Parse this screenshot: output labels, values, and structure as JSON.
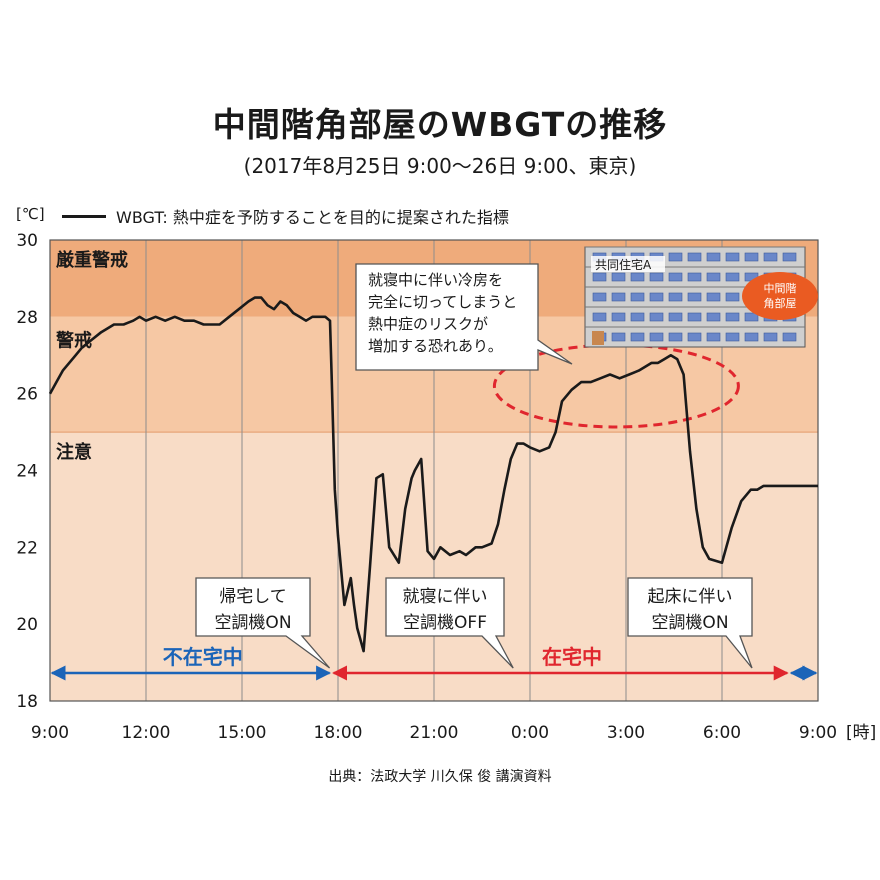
{
  "title": "中間階角部屋のWBGTの推移",
  "subtitle": "(2017年8月25日 9:00～26日 9:00、東京)",
  "unit_label": "[℃]",
  "source": "出典：法政大学 川久保 俊 講演資料",
  "colors": {
    "severe": "#efab7b",
    "warning": "#f6c8a4",
    "caution": "#f8dcc6",
    "line": "#1a1a1a",
    "away": "#1b64b8",
    "home": "#e0262e",
    "highlight": "#e0262e"
  },
  "chart_data": {
    "type": "line",
    "title": "中間階角部屋のWBGTの推移",
    "xlabel": "[時]",
    "ylabel": "[℃]",
    "xlim": [
      0,
      24
    ],
    "ylim": [
      18,
      30
    ],
    "x_ticks": [
      "9:00",
      "12:00",
      "15:00",
      "18:00",
      "21:00",
      "0:00",
      "3:00",
      "6:00",
      "9:00"
    ],
    "y_ticks": [
      18,
      20,
      22,
      24,
      26,
      28,
      30
    ],
    "x_tick_suffix": "[時]",
    "legend": "WBGT: 熱中症を予防することを目的に提案された指標",
    "zones": [
      {
        "label": "厳重警戒",
        "from": 28,
        "to": 30
      },
      {
        "label": "警戒",
        "from": 25,
        "to": 28
      },
      {
        "label": "注意",
        "from": 18,
        "to": 25
      }
    ],
    "series": [
      {
        "name": "WBGT",
        "x": [
          0,
          0.2,
          0.4,
          0.6,
          0.8,
          1.0,
          1.3,
          1.6,
          2.0,
          2.3,
          2.6,
          2.8,
          3.0,
          3.3,
          3.6,
          3.9,
          4.2,
          4.5,
          4.8,
          5.0,
          5.3,
          5.6,
          5.9,
          6.2,
          6.4,
          6.6,
          6.8,
          7.0,
          7.2,
          7.4,
          7.6,
          7.8,
          8.0,
          8.2,
          8.4,
          8.6,
          8.75,
          8.8,
          8.9,
          9.0,
          9.2,
          9.4,
          9.5,
          9.6,
          9.8,
          10.0,
          10.2,
          10.4,
          10.6,
          10.9,
          11.1,
          11.3,
          11.4,
          11.6,
          11.8,
          12.0,
          12.2,
          12.5,
          12.8,
          13.0,
          13.3,
          13.5,
          13.8,
          14.0,
          14.2,
          14.4,
          14.6,
          14.8,
          15.0,
          15.3,
          15.6,
          15.8,
          16.0,
          16.3,
          16.6,
          16.9,
          17.2,
          17.5,
          17.8,
          18.1,
          18.4,
          18.6,
          18.8,
          19.0,
          19.2,
          19.4,
          19.6,
          19.8,
          20.0,
          20.2,
          20.4,
          20.6,
          21.0,
          21.3,
          21.6,
          21.9,
          22.1,
          22.3,
          22.5,
          22.7,
          22.9,
          23.1,
          23.3,
          23.6,
          24.0
        ],
        "values": [
          26.0,
          26.3,
          26.6,
          26.8,
          27.0,
          27.2,
          27.4,
          27.6,
          27.8,
          27.8,
          27.9,
          28.0,
          27.9,
          28.0,
          27.9,
          28.0,
          27.9,
          27.9,
          27.8,
          27.8,
          27.8,
          28.0,
          28.2,
          28.4,
          28.5,
          28.5,
          28.3,
          28.2,
          28.4,
          28.3,
          28.1,
          28.0,
          27.9,
          28.0,
          28.0,
          28.0,
          27.9,
          26.5,
          23.5,
          22.3,
          20.5,
          21.2,
          20.5,
          19.9,
          19.3,
          21.5,
          23.8,
          23.9,
          22.0,
          21.6,
          23.0,
          23.8,
          24.0,
          24.3,
          21.9,
          21.7,
          22.0,
          21.8,
          21.9,
          21.8,
          22.0,
          22.0,
          22.1,
          22.6,
          23.5,
          24.3,
          24.7,
          24.7,
          24.6,
          24.5,
          24.6,
          25.0,
          25.8,
          26.1,
          26.3,
          26.3,
          26.4,
          26.5,
          26.4,
          26.5,
          26.6,
          26.7,
          26.8,
          26.8,
          26.9,
          27.0,
          26.9,
          26.5,
          24.5,
          23.0,
          22.0,
          21.7,
          21.6,
          22.5,
          23.2,
          23.5,
          23.5,
          23.6,
          23.6,
          23.6,
          23.6,
          23.6,
          23.6,
          23.6,
          23.6
        ]
      }
    ],
    "periods": [
      {
        "label": "不在宅中",
        "from": 0,
        "to": 8.8
      },
      {
        "label": "在宅中",
        "from": 8.8,
        "to": 23.1
      }
    ],
    "annotations": [
      {
        "text": [
          "帰宅して",
          "空調機ON"
        ],
        "x": 8.8
      },
      {
        "text": [
          "就寝に伴い",
          "空調機OFF"
        ],
        "x": 14.6
      },
      {
        "text": [
          "起床に伴い",
          "空調機ON"
        ],
        "x": 22.0
      },
      {
        "text": [
          "就寝中に伴い冷房を",
          "完全に切ってしまうと",
          "熱中症のリスクが",
          "増加する恐れあり。"
        ]
      }
    ],
    "building": {
      "label": "共同住宅A",
      "badge": [
        "中間階",
        "角部屋"
      ]
    }
  }
}
